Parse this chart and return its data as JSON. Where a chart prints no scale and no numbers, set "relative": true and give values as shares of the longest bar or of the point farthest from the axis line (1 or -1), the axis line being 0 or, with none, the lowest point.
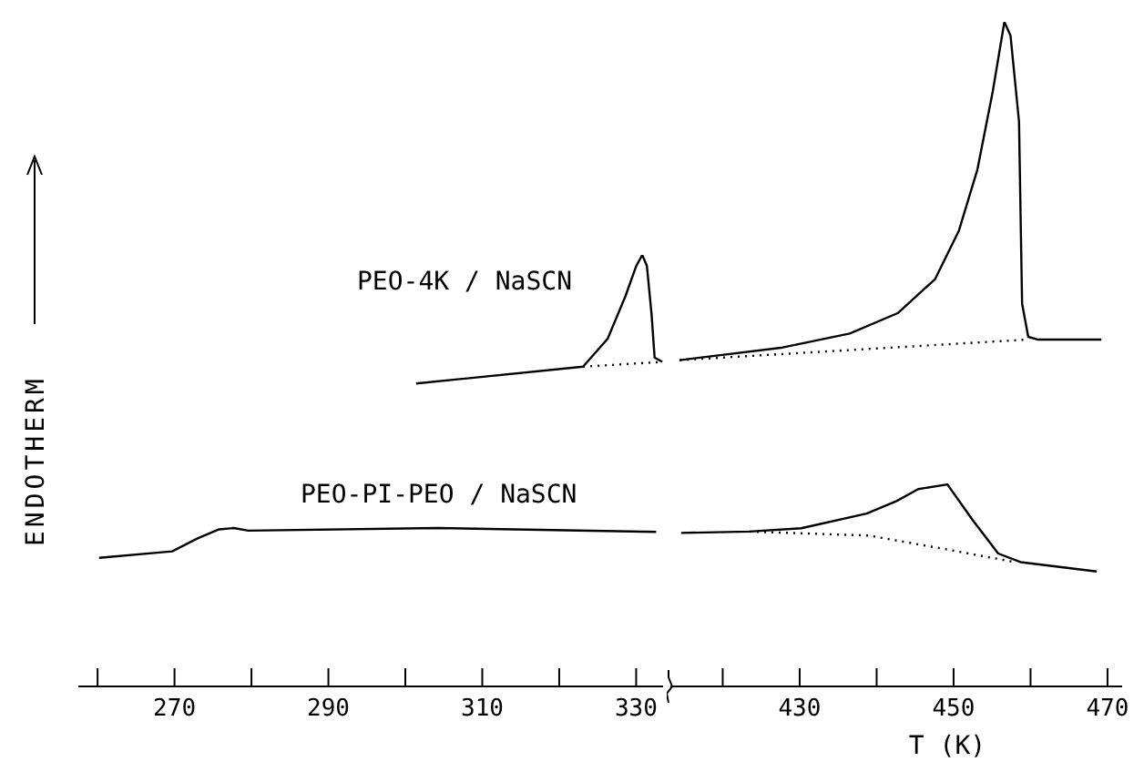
{
  "chart_data": [
    {
      "type": "line",
      "relative": true,
      "ylabel": "ENDOTHERM",
      "xlim": [
        257.5,
        333.5
      ],
      "xticks": [
        {
          "value": 260,
          "label": null
        },
        270,
        {
          "value": 280,
          "label": null
        },
        290,
        {
          "value": 300,
          "label": null
        },
        310,
        {
          "value": 320,
          "label": null
        },
        330
      ],
      "tick_labels": "x",
      "legend": false,
      "series": [
        {
          "name": "PEO-4K / NaSCN",
          "color": "#000000",
          "x": [
            301.4,
            323.1,
            326.3,
            328.6,
            330.0,
            330.8,
            331.4,
            332.0,
            332.4,
            333.4
          ],
          "values": [
            0.702,
            0.741,
            0.806,
            0.904,
            0.974,
            1.0,
            0.974,
            0.863,
            0.762,
            0.752
          ]
        },
        {
          "color": "#000000",
          "line_style": "dotted",
          "x": [
            323.1,
            333.4
          ],
          "values": [
            0.741,
            0.752
          ]
        },
        {
          "name": "PEO-PI-PEO / NaSCN",
          "color": "#000000",
          "x": [
            260.2,
            269.7,
            273.0,
            275.8,
            277.7,
            279.6,
            304.2,
            332.6
          ],
          "values": [
            0.298,
            0.313,
            0.343,
            0.364,
            0.367,
            0.361,
            0.367,
            0.358
          ]
        }
      ]
    },
    {
      "type": "line",
      "relative": true,
      "xlabel": "T (K)",
      "xlim": [
        413.2,
        471.9
      ],
      "xticks": [
        {
          "value": 420,
          "label": null
        },
        430,
        {
          "value": 440,
          "label": null
        },
        450,
        {
          "value": 460,
          "label": null
        },
        470
      ],
      "tick_labels": "x",
      "legend": false,
      "series": [
        {
          "color": "#000000",
          "x": [
            414.4,
            427.8,
            436.5,
            442.8,
            447.6,
            450.7,
            453.1,
            455.1,
            456.6,
            457.4,
            458.5,
            458.9,
            459.7,
            460.9,
            469.2
          ],
          "values": [
            0.491,
            0.51,
            0.531,
            0.562,
            0.613,
            0.686,
            0.778,
            0.896,
            1.0,
            0.979,
            0.85,
            0.576,
            0.526,
            0.522,
            0.522
          ]
        },
        {
          "color": "#000000",
          "line_style": "dotted",
          "x": [
            414.4,
            459.7
          ],
          "values": [
            0.491,
            0.522
          ]
        },
        {
          "color": "#000000",
          "x": [
            414.6,
            423.5,
            430.2,
            438.7,
            442.6,
            445.4,
            449.2,
            452.5,
            455.8,
            458.7,
            468.6
          ],
          "values": [
            0.231,
            0.233,
            0.238,
            0.26,
            0.279,
            0.297,
            0.304,
            0.25,
            0.2,
            0.187,
            0.173
          ]
        },
        {
          "color": "#000000",
          "line_style": "dotted",
          "x": [
            423.5,
            439.0,
            449.2,
            458.0
          ],
          "values": [
            0.233,
            0.227,
            0.206,
            0.187
          ]
        }
      ]
    }
  ]
}
